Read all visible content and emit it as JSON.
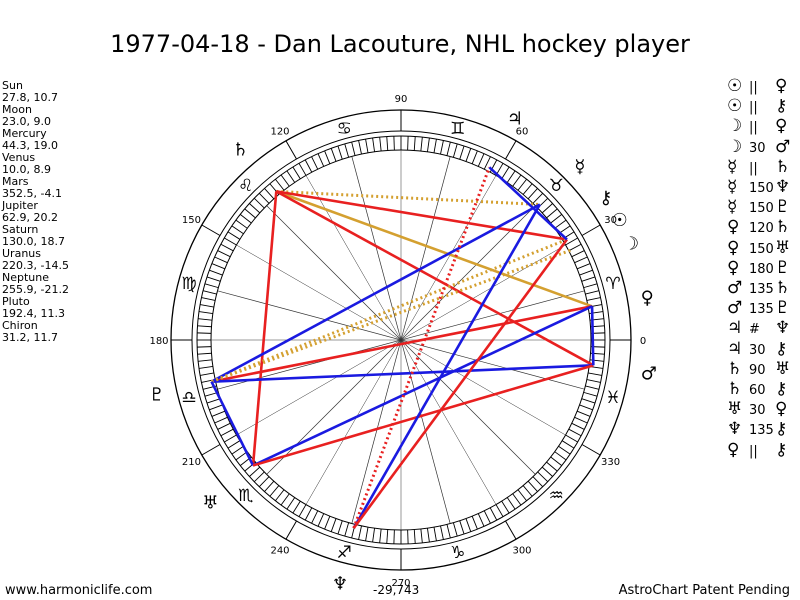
{
  "title": "1977-04-18 - Dan Lacouture, NHL hockey player",
  "planets": [
    {
      "name": "Sun",
      "coords": "27.8, 10.7"
    },
    {
      "name": "Moon",
      "coords": "23.0, 9.0"
    },
    {
      "name": "Mercury",
      "coords": "44.3, 19.0"
    },
    {
      "name": "Venus",
      "coords": "10.0, 8.9"
    },
    {
      "name": "Mars",
      "coords": "352.5, -4.1"
    },
    {
      "name": "Jupiter",
      "coords": "62.9, 20.2"
    },
    {
      "name": "Saturn",
      "coords": "130.0, 18.7"
    },
    {
      "name": "Uranus",
      "coords": "220.3, -14.5"
    },
    {
      "name": "Neptune",
      "coords": "255.9, -21.2"
    },
    {
      "name": "Pluto",
      "coords": "192.4, 11.3"
    },
    {
      "name": "Chiron",
      "coords": "31.2, 11.7"
    }
  ],
  "aspects": [
    {
      "p1": "☉",
      "sym": "||",
      "p2": "♀"
    },
    {
      "p1": "☉",
      "sym": "||",
      "p2": "⚷"
    },
    {
      "p1": "☽",
      "sym": "||",
      "p2": "♀"
    },
    {
      "p1": "☽",
      "sym": "30",
      "p2": "♂"
    },
    {
      "p1": "☿",
      "sym": "||",
      "p2": "♄"
    },
    {
      "p1": "☿",
      "sym": "150",
      "p2": "♆"
    },
    {
      "p1": "☿",
      "sym": "150",
      "p2": "♇"
    },
    {
      "p1": "♀",
      "sym": "120",
      "p2": "♄"
    },
    {
      "p1": "♀",
      "sym": "150",
      "p2": "♅"
    },
    {
      "p1": "♀",
      "sym": "180",
      "p2": "♇"
    },
    {
      "p1": "♂",
      "sym": "135",
      "p2": "♄"
    },
    {
      "p1": "♂",
      "sym": "135",
      "p2": "♇"
    },
    {
      "p1": "♃",
      "sym": "#",
      "p2": "♆"
    },
    {
      "p1": "♃",
      "sym": "30",
      "p2": "⚷"
    },
    {
      "p1": "♄",
      "sym": "90",
      "p2": "♅"
    },
    {
      "p1": "♄",
      "sym": "60",
      "p2": "⚷"
    },
    {
      "p1": "♅",
      "sym": "30",
      "p2": "♀"
    },
    {
      "p1": "♆",
      "sym": "135",
      "p2": "⚷"
    },
    {
      "p1": "♀",
      "sym": "||",
      "p2": "⚷"
    }
  ],
  "wheel": {
    "degree_labels": [
      "0",
      "30",
      "60",
      "90",
      "120",
      "150",
      "180",
      "210",
      "240",
      "270",
      "300",
      "330"
    ],
    "zodiac_signs": [
      "♈",
      "♉",
      "♊",
      "♋",
      "♌",
      "♍",
      "♎",
      "♏",
      "♐",
      "♑",
      "♒",
      "♓"
    ],
    "planet_glyphs": [
      {
        "glyph": "☉",
        "lon": 27.8
      },
      {
        "glyph": "☽",
        "lon": 23.0
      },
      {
        "glyph": "☿",
        "lon": 44.3
      },
      {
        "glyph": "♀",
        "lon": 10.0
      },
      {
        "glyph": "♂",
        "lon": 352.5
      },
      {
        "glyph": "♃",
        "lon": 62.9
      },
      {
        "glyph": "♄",
        "lon": 130.0
      },
      {
        "glyph": "♅",
        "lon": 220.3
      },
      {
        "glyph": "♆",
        "lon": 255.9
      },
      {
        "glyph": "♇",
        "lon": 192.4
      },
      {
        "glyph": "⚷",
        "lon": 31.2
      }
    ],
    "aspect_lines": [
      {
        "a": 130.0,
        "b": 44.3,
        "color": "#d4a030",
        "style": "dotted"
      },
      {
        "a": 130.0,
        "b": 10.0,
        "color": "#d4a030",
        "style": "solid"
      },
      {
        "a": 130.0,
        "b": 220.3,
        "color": "#e82020",
        "style": "solid"
      },
      {
        "a": 130.0,
        "b": 352.5,
        "color": "#e82020",
        "style": "solid"
      },
      {
        "a": 130.0,
        "b": 31.2,
        "color": "#e82020",
        "style": "solid"
      },
      {
        "a": 192.4,
        "b": 10.0,
        "color": "#e82020",
        "style": "solid"
      },
      {
        "a": 192.4,
        "b": 44.3,
        "color": "#1a1ae0",
        "style": "solid"
      },
      {
        "a": 192.4,
        "b": 352.5,
        "color": "#1a1ae0",
        "style": "solid"
      },
      {
        "a": 192.4,
        "b": 31.2,
        "color": "#d4a030",
        "style": "dotted"
      },
      {
        "a": 192.4,
        "b": 27.8,
        "color": "#d4a030",
        "style": "dotted"
      },
      {
        "a": 192.4,
        "b": 220.3,
        "color": "#1a1ae0",
        "style": "solid"
      },
      {
        "a": 220.3,
        "b": 10.0,
        "color": "#1a1ae0",
        "style": "solid"
      },
      {
        "a": 220.3,
        "b": 352.5,
        "color": "#e82020",
        "style": "solid"
      },
      {
        "a": 255.9,
        "b": 44.3,
        "color": "#1a1ae0",
        "style": "solid"
      },
      {
        "a": 255.9,
        "b": 31.2,
        "color": "#e82020",
        "style": "solid"
      },
      {
        "a": 255.9,
        "b": 62.9,
        "color": "#e82020",
        "style": "dotted"
      },
      {
        "a": 62.9,
        "b": 31.2,
        "color": "#1a1ae0",
        "style": "solid"
      },
      {
        "a": 10.0,
        "b": 352.5,
        "color": "#1a1ae0",
        "style": "solid"
      }
    ]
  },
  "footer": {
    "left": "www.harmoniclife.com",
    "center": "-29,743",
    "right": "AstroChart Patent Pending"
  }
}
